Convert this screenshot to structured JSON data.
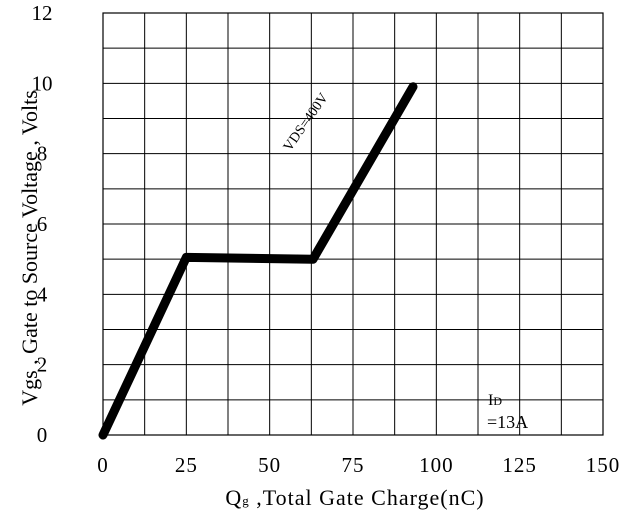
{
  "chart_data": {
    "type": "line",
    "xlabel": "Qg ,Total Gate Charge(nC)",
    "xlabel_main": "Q",
    "xlabel_sub": "g",
    "xlabel_rest": " ,Total Gate Charge(nC)",
    "ylabel": "Vgs , Gate to Source Voltage , Volts",
    "xlim": [
      0,
      150
    ],
    "ylim": [
      0,
      12
    ],
    "x_ticks": [
      0,
      25,
      50,
      75,
      100,
      125,
      150
    ],
    "y_ticks": [
      0,
      2,
      4,
      6,
      8,
      10,
      12
    ],
    "x_tick_labels": [
      "0",
      "25",
      "50",
      "75",
      "100",
      "125",
      "150"
    ],
    "y_tick_labels": [
      "0",
      "2",
      "4",
      "6",
      "8",
      "10",
      "12"
    ],
    "grid": true,
    "series": [
      {
        "x": [
          0,
          25,
          63,
          93
        ],
        "y": [
          0,
          5.05,
          5.0,
          9.9
        ]
      }
    ],
    "annotations": {
      "vds": "VDS=400V",
      "id_main": "I",
      "id_sub": "D",
      "id_value": "=13A"
    }
  }
}
